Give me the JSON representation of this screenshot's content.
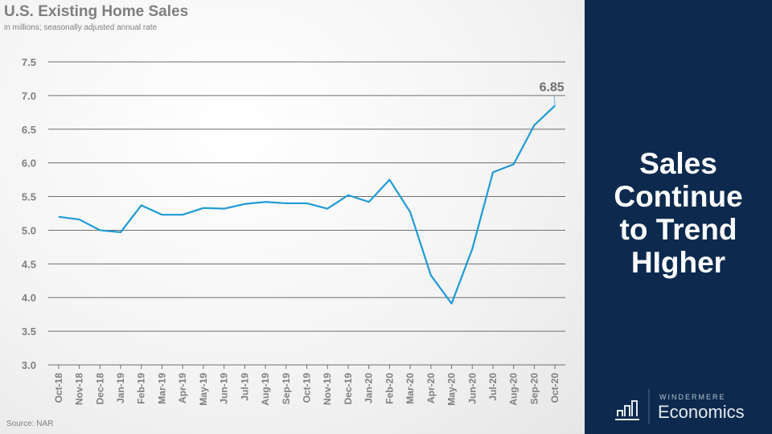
{
  "title": "U.S. Existing Home Sales",
  "subtitle": "in millions; seasonally adjusted annual rate",
  "source": "Source: NAR",
  "headline": [
    "Sales",
    "Continue",
    "to Trend",
    "HIgher"
  ],
  "brand": {
    "top": "WINDERMERE",
    "bottom": "Economics"
  },
  "colors": {
    "line": "#1f9ad6",
    "panel": "#0d2a4e",
    "text": "#7f7f7f"
  },
  "chart_data": {
    "type": "line",
    "title": "U.S. Existing Home Sales",
    "ylabel": "in millions; seasonally adjusted annual rate",
    "ylim": [
      3.0,
      7.5
    ],
    "yticks": [
      "3.0",
      "3.5",
      "4.0",
      "4.5",
      "5.0",
      "5.5",
      "6.0",
      "6.5",
      "7.0",
      "7.5"
    ],
    "grid": true,
    "categories": [
      "Oct-18",
      "Nov-18",
      "Dec-18",
      "Jan-19",
      "Feb-19",
      "Mar-19",
      "Apr-19",
      "May-19",
      "Jun-19",
      "Jul-19",
      "Aug-19",
      "Sep-19",
      "Oct-19",
      "Nov-19",
      "Dec-19",
      "Jan-20",
      "Feb-20",
      "Mar-20",
      "Apr-20",
      "May-20",
      "Jun-20",
      "Jul-20",
      "Aug-20",
      "Sep-20",
      "Oct-20"
    ],
    "series": [
      {
        "name": "Existing Home Sales",
        "values": [
          5.2,
          5.16,
          5.0,
          4.97,
          5.37,
          5.23,
          5.23,
          5.33,
          5.32,
          5.39,
          5.42,
          5.4,
          5.4,
          5.32,
          5.52,
          5.42,
          5.75,
          5.27,
          4.33,
          3.91,
          4.72,
          5.86,
          5.98,
          6.56,
          6.85
        ]
      }
    ],
    "annotation": "6.85"
  }
}
